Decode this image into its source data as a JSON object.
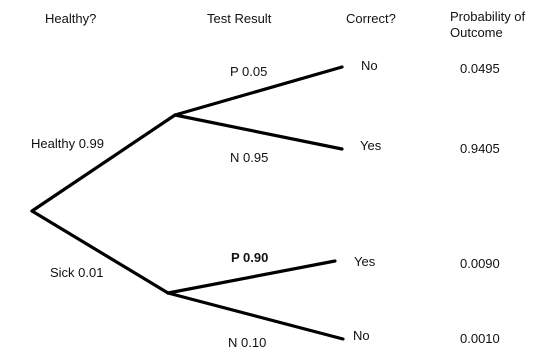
{
  "headers": {
    "healthy": "Healthy?",
    "test_result": "Test Result",
    "correct": "Correct?",
    "probability_line1": "Probability of",
    "probability_line2": "Outcome"
  },
  "branches": {
    "healthy": "Healthy 0.99",
    "sick": "Sick 0.01",
    "healthy_positive": "P 0.05",
    "healthy_negative": "N 0.95",
    "sick_positive": "P 0.90",
    "sick_negative": "N 0.10"
  },
  "outcomes": [
    {
      "correct": "No",
      "probability": "0.0495"
    },
    {
      "correct": "Yes",
      "probability": "0.9405"
    },
    {
      "correct": "Yes",
      "probability": "0.0090"
    },
    {
      "correct": "No",
      "probability": "0.0010"
    }
  ],
  "colors": {
    "line": "#000000",
    "text": "#111111",
    "background": "#ffffff"
  }
}
